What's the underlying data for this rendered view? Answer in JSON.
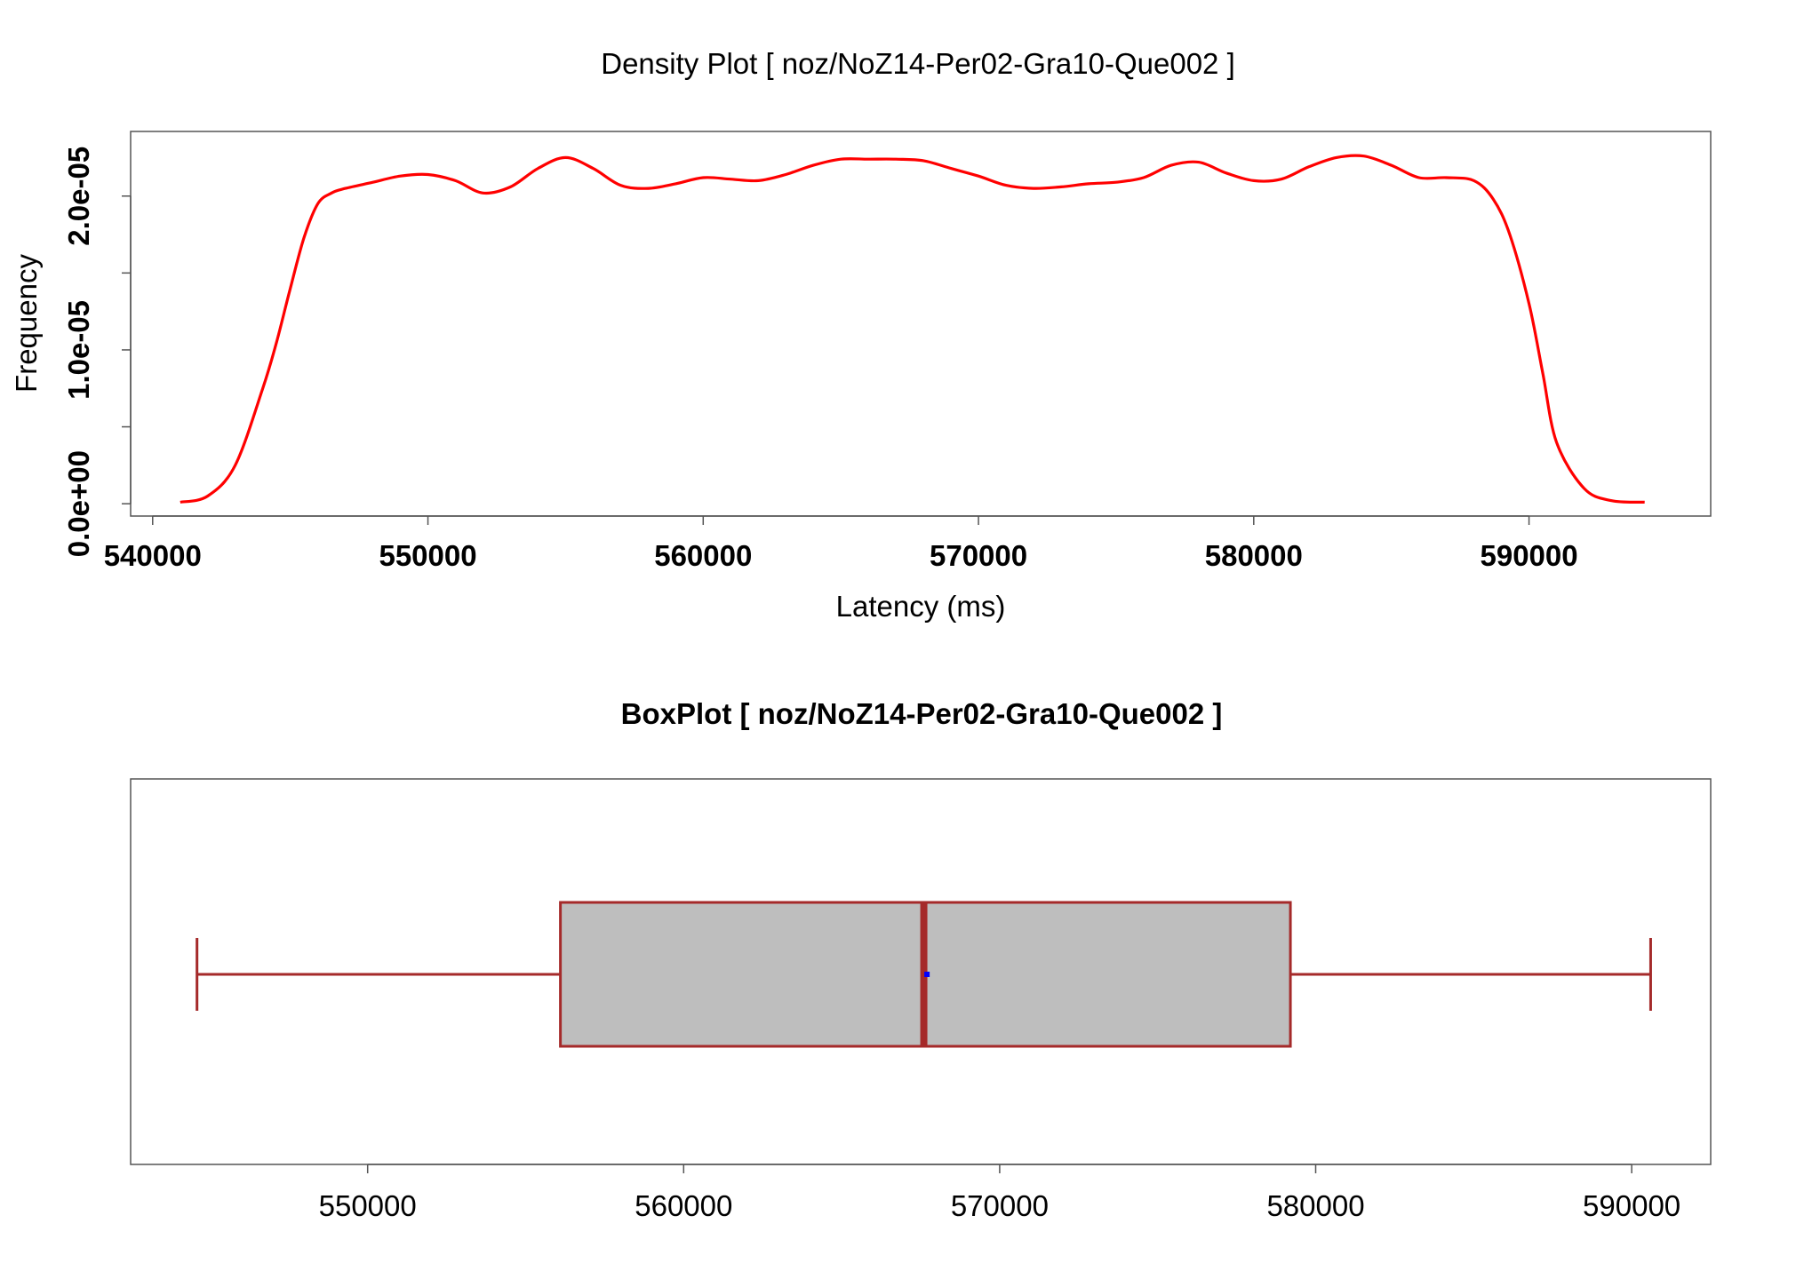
{
  "chart_data": [
    {
      "type": "line",
      "title": "Density Plot [ noz/NoZ14-Per02-Gra10-Que002 ]",
      "xlabel": "Latency (ms)",
      "ylabel": "Frequency",
      "xlim": [
        539200,
        596600
      ],
      "ylim": [
        -8e-07,
        2.42e-05
      ],
      "x_ticks": [
        540000,
        550000,
        560000,
        570000,
        580000,
        590000
      ],
      "x_tick_labels": [
        "540000",
        "550000",
        "560000",
        "570000",
        "580000",
        "590000"
      ],
      "y_ticks": [
        0,
        5e-06,
        1e-05,
        1.5e-05,
        2e-05
      ],
      "y_tick_labels": [
        "0.0e+00",
        "1.0e-05",
        "2.0e-05"
      ],
      "y_labeled_ticks": [
        0,
        1e-05,
        2e-05
      ],
      "grid": false,
      "series": [
        {
          "color": "#ff0000",
          "x": [
            541000,
            542000,
            543000,
            544000,
            544500,
            545000,
            545500,
            546000,
            546500,
            547000,
            548000,
            549000,
            550000,
            551000,
            552000,
            553000,
            554000,
            555000,
            556000,
            557000,
            558000,
            559000,
            560000,
            561000,
            562000,
            563000,
            564000,
            565000,
            566000,
            567000,
            568000,
            569000,
            570000,
            571000,
            572000,
            573000,
            574000,
            575000,
            576000,
            577000,
            578000,
            579000,
            580000,
            581000,
            582000,
            583000,
            584000,
            585000,
            586000,
            587000,
            588000,
            588700,
            589300,
            590000,
            590500,
            591000,
            592000,
            593000,
            594200
          ],
          "y": [
            1e-07,
            5e-07,
            2.5e-06,
            7.5e-06,
            1.05e-05,
            1.4e-05,
            1.73e-05,
            1.95e-05,
            2.02e-05,
            2.05e-05,
            2.09e-05,
            2.13e-05,
            2.14e-05,
            2.1e-05,
            2.02e-05,
            2.06e-05,
            2.18e-05,
            2.25e-05,
            2.18e-05,
            2.07e-05,
            2.05e-05,
            2.08e-05,
            2.12e-05,
            2.11e-05,
            2.1e-05,
            2.14e-05,
            2.2e-05,
            2.24e-05,
            2.24e-05,
            2.24e-05,
            2.23e-05,
            2.18e-05,
            2.13e-05,
            2.07e-05,
            2.05e-05,
            2.06e-05,
            2.08e-05,
            2.09e-05,
            2.12e-05,
            2.2e-05,
            2.22e-05,
            2.15e-05,
            2.1e-05,
            2.11e-05,
            2.19e-05,
            2.25e-05,
            2.26e-05,
            2.2e-05,
            2.12e-05,
            2.12e-05,
            2.1e-05,
            1.98e-05,
            1.75e-05,
            1.3e-05,
            8.5e-06,
            4e-06,
            1e-06,
            2e-07,
            1e-07
          ]
        }
      ]
    },
    {
      "type": "box",
      "title": "BoxPlot [ noz/NoZ14-Per02-Gra10-Que002 ]",
      "xlim": [
        542500,
        592500
      ],
      "x_ticks": [
        550000,
        560000,
        570000,
        580000,
        590000
      ],
      "x_tick_labels": [
        "550000",
        "560000",
        "570000",
        "580000",
        "590000"
      ],
      "whisker_low": 544600,
      "q1": 556100,
      "median": 567600,
      "mean": 567700,
      "q3": 579200,
      "whisker_high": 590600,
      "colors": {
        "box_fill": "#bebebe",
        "box_border": "#a52a2a",
        "mean_point": "#0000ff"
      }
    }
  ]
}
